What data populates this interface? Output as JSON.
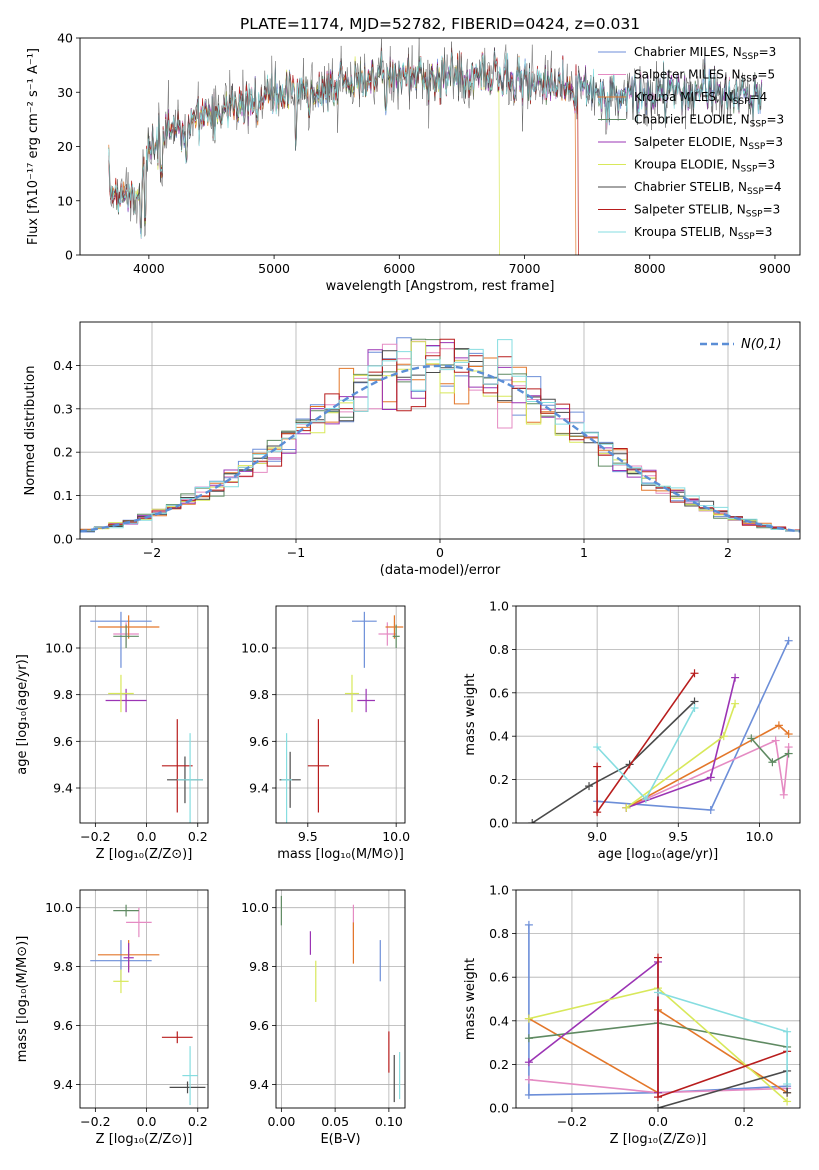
{
  "chart_data": [
    {
      "id": "spectrum",
      "type": "line",
      "title": "PLATE=1174, MJD=52782, FIBERID=0424, z=0.031",
      "xlabel": "wavelength [Angstrom, rest frame]",
      "ylabel": "Flux [fλ10⁻¹⁷ erg cm⁻² s⁻¹ A⁻¹]",
      "xlim": [
        3450,
        9200
      ],
      "ylim": [
        0,
        40
      ],
      "xticks": [
        4000,
        5000,
        6000,
        7000,
        8000,
        9000
      ],
      "yticks": [
        0,
        10,
        20,
        30,
        40
      ],
      "legend_position": "upper-right",
      "series": [
        {
          "name": "Chabrier MILES, N",
          "sub": "SSP",
          "suffix": "=3",
          "color": "#6c8ed8"
        },
        {
          "name": "Salpeter MILES, N",
          "sub": "SSP",
          "suffix": "=5",
          "color": "#e58bc3"
        },
        {
          "name": "Kroupa MILES, N",
          "sub": "SSP",
          "suffix": "=4",
          "color": "#e3772a"
        },
        {
          "name": "Chabrier ELODIE, N",
          "sub": "SSP",
          "suffix": "=3",
          "color": "#5f8a62"
        },
        {
          "name": "Salpeter ELODIE, N",
          "sub": "SSP",
          "suffix": "=3",
          "color": "#9b34b4"
        },
        {
          "name": "Kroupa ELODIE, N",
          "sub": "SSP",
          "suffix": "=3",
          "color": "#d8e85a"
        },
        {
          "name": "Chabrier STELIB, N",
          "sub": "SSP",
          "suffix": "=4",
          "color": "#4a4a4a"
        },
        {
          "name": "Salpeter STELIB, N",
          "sub": "SSP",
          "suffix": "=3",
          "color": "#b81d1d"
        },
        {
          "name": "Kroupa STELIB, N",
          "sub": "SSP",
          "suffix": "=3",
          "color": "#86dde0"
        }
      ],
      "continuum": [
        [
          3680,
          12
        ],
        [
          3900,
          11
        ],
        [
          4000,
          19
        ],
        [
          4200,
          23
        ],
        [
          4500,
          26
        ],
        [
          4800,
          28.5
        ],
        [
          5200,
          30
        ],
        [
          5600,
          32
        ],
        [
          6000,
          33
        ],
        [
          6500,
          33
        ],
        [
          7000,
          32
        ],
        [
          7300,
          31
        ],
        [
          7600,
          30
        ],
        [
          7800,
          29.5
        ],
        [
          8200,
          30
        ],
        [
          8600,
          29.5
        ],
        [
          8900,
          29
        ]
      ],
      "dips": [
        [
          3935,
          3
        ],
        [
          3970,
          6
        ],
        [
          4100,
          14
        ],
        [
          4300,
          16
        ],
        [
          4861,
          24
        ],
        [
          5175,
          20
        ],
        [
          5270,
          26
        ],
        [
          5890,
          26
        ],
        [
          6563,
          30
        ]
      ],
      "model_ranges": [
        [
          3680,
          8900
        ],
        [
          3680,
          8900
        ],
        [
          3680,
          7410
        ],
        [
          3680,
          8900
        ],
        [
          3680,
          8900
        ],
        [
          3680,
          6800
        ],
        [
          3680,
          8900
        ],
        [
          3680,
          7430
        ],
        [
          3680,
          8900
        ]
      ]
    },
    {
      "id": "residuals",
      "type": "step",
      "xlabel": "(data-model)/error",
      "ylabel": "Normed distribution",
      "xlim": [
        -2.5,
        2.5
      ],
      "ylim": [
        0,
        0.5
      ],
      "xticks": [
        -2,
        -1,
        0,
        1,
        2
      ],
      "yticks": [
        0.0,
        0.1,
        0.2,
        0.3,
        0.4
      ],
      "legend": "N(0,1)",
      "bin_width": 0.1
    },
    {
      "id": "Z-age",
      "type": "errorbar",
      "xlabel": "Z [log₁₀(Z/Z⊙)]",
      "ylabel": "age  [log₁₀(age/yr)]",
      "xlim": [
        -0.26,
        0.24
      ],
      "ylim": [
        9.25,
        10.18
      ],
      "xticks": [
        -0.2,
        0.0,
        0.2
      ],
      "yticks": [
        9.4,
        9.6,
        9.8,
        10.0
      ],
      "points": [
        {
          "x": -0.1,
          "y": 10.115,
          "xerr": 0.12,
          "yerr": [
            0.2,
            0.04
          ],
          "color": "#6c8ed8"
        },
        {
          "x": -0.08,
          "y": 10.06,
          "xerr": 0.05,
          "yerr": 0.05,
          "color": "#e58bc3"
        },
        {
          "x": -0.07,
          "y": 10.09,
          "xerr": 0.12,
          "yerr": 0.05,
          "color": "#e3772a"
        },
        {
          "x": -0.08,
          "y": 10.05,
          "xerr": 0.05,
          "yerr": 0.05,
          "color": "#5f8a62"
        },
        {
          "x": -0.08,
          "y": 9.775,
          "xerr": 0.08,
          "yerr": 0.05,
          "color": "#9b34b4"
        },
        {
          "x": -0.1,
          "y": 9.805,
          "xerr": 0.05,
          "yerr": 0.08,
          "color": "#d8e85a"
        },
        {
          "x": 0.15,
          "y": 9.435,
          "xerr": 0.07,
          "yerr": 0.1,
          "color": "#4a4a4a"
        },
        {
          "x": 0.12,
          "y": 9.495,
          "xerr": 0.06,
          "yerr": 0.2,
          "color": "#b81d1d"
        },
        {
          "x": 0.17,
          "y": 9.435,
          "xerr": 0.05,
          "yerr": 0.2,
          "color": "#86dde0"
        }
      ]
    },
    {
      "id": "mass-age",
      "type": "errorbar",
      "xlabel": "mass [log₁₀(M/M⊙)]",
      "xlim": [
        9.32,
        10.05
      ],
      "ylim": [
        9.25,
        10.18
      ],
      "xticks": [
        9.5,
        10.0
      ],
      "yticks": [
        9.4,
        9.6,
        9.8,
        10.0
      ],
      "points": [
        {
          "x": 9.82,
          "y": 10.115,
          "xerr": 0.07,
          "yerr": [
            0.2,
            0.04
          ],
          "color": "#6c8ed8"
        },
        {
          "x": 9.95,
          "y": 10.06,
          "xerr": 0.05,
          "yerr": 0.05,
          "color": "#e58bc3"
        },
        {
          "x": 9.99,
          "y": 10.09,
          "xerr": 0.05,
          "yerr": 0.05,
          "color": "#e3772a"
        },
        {
          "x": 10.0,
          "y": 10.05,
          "xerr": 0.02,
          "yerr": 0.05,
          "color": "#5f8a62"
        },
        {
          "x": 9.83,
          "y": 9.775,
          "xerr": 0.05,
          "yerr": 0.05,
          "color": "#9b34b4"
        },
        {
          "x": 9.75,
          "y": 9.805,
          "xerr": 0.04,
          "yerr": 0.08,
          "color": "#d8e85a"
        },
        {
          "x": 9.4,
          "y": 9.435,
          "xerr": 0.06,
          "yerr": 0.12,
          "color": "#4a4a4a"
        },
        {
          "x": 9.56,
          "y": 9.495,
          "xerr": 0.06,
          "yerr": 0.2,
          "color": "#b81d1d"
        },
        {
          "x": 9.38,
          "y": 9.435,
          "xerr": 0.03,
          "yerr": 0.2,
          "color": "#86dde0"
        }
      ]
    },
    {
      "id": "age-weight",
      "type": "line",
      "xlabel": "age  [log₁₀(age/yr)]",
      "ylabel": "mass weight",
      "xlim": [
        8.5,
        10.25
      ],
      "ylim": [
        0,
        1.0
      ],
      "xticks": [
        9.0,
        9.5,
        10.0
      ],
      "yticks": [
        0.0,
        0.2,
        0.4,
        0.6,
        0.8,
        1.0
      ],
      "series": [
        {
          "color": "#6c8ed8",
          "x": [
            9.0,
            9.7,
            10.18
          ],
          "y": [
            0.1,
            0.06,
            0.84
          ]
        },
        {
          "color": "#e58bc3",
          "x": [
            9.18,
            10.1,
            10.15,
            10.18
          ],
          "y": [
            0.07,
            0.38,
            0.13,
            0.35
          ]
        },
        {
          "color": "#e3772a",
          "x": [
            9.18,
            10.12,
            10.18
          ],
          "y": [
            0.07,
            0.45,
            0.41
          ]
        },
        {
          "color": "#5f8a62",
          "x": [
            9.95,
            10.08,
            10.18
          ],
          "y": [
            0.39,
            0.28,
            0.32
          ]
        },
        {
          "color": "#9b34b4",
          "x": [
            9.18,
            9.7,
            9.85
          ],
          "y": [
            0.07,
            0.21,
            0.67
          ]
        },
        {
          "color": "#d8e85a",
          "x": [
            9.18,
            9.78,
            9.85
          ],
          "y": [
            0.07,
            0.4,
            0.55
          ]
        },
        {
          "color": "#4a4a4a",
          "x": [
            8.6,
            8.95,
            9.2,
            9.6
          ],
          "y": [
            0.0,
            0.17,
            0.27,
            0.56
          ]
        },
        {
          "color": "#b81d1d",
          "x": [
            9.0,
            9.0,
            9.6
          ],
          "y": [
            0.26,
            0.05,
            0.69
          ]
        },
        {
          "color": "#86dde0",
          "x": [
            9.0,
            9.3,
            9.6
          ],
          "y": [
            0.35,
            0.11,
            0.53
          ]
        }
      ]
    },
    {
      "id": "Z-mass",
      "type": "errorbar",
      "xlabel": "Z [log₁₀(Z/Z⊙)]",
      "ylabel": "mass [log₁₀(M/M⊙)]",
      "xlim": [
        -0.26,
        0.24
      ],
      "ylim": [
        9.32,
        10.06
      ],
      "xticks": [
        -0.2,
        0.0,
        0.2
      ],
      "yticks": [
        9.4,
        9.6,
        9.8,
        10.0
      ],
      "points": [
        {
          "x": -0.1,
          "y": 9.82,
          "xerr": 0.12,
          "yerr": 0.07,
          "color": "#6c8ed8"
        },
        {
          "x": -0.03,
          "y": 9.95,
          "xerr": 0.05,
          "yerr": 0.05,
          "color": "#e58bc3"
        },
        {
          "x": -0.07,
          "y": 9.84,
          "xerr": 0.12,
          "yerr": 0.05,
          "color": "#e3772a"
        },
        {
          "x": -0.08,
          "y": 9.99,
          "xerr": 0.05,
          "yerr": 0.02,
          "color": "#5f8a62"
        },
        {
          "x": -0.07,
          "y": 9.83,
          "xerr": 0.02,
          "yerr": 0.05,
          "color": "#9b34b4"
        },
        {
          "x": -0.1,
          "y": 9.75,
          "xerr": 0.03,
          "yerr": 0.04,
          "color": "#d8e85a"
        },
        {
          "x": 0.16,
          "y": 9.39,
          "xerr": 0.07,
          "yerr": 0.02,
          "color": "#4a4a4a"
        },
        {
          "x": 0.12,
          "y": 9.56,
          "xerr": 0.06,
          "yerr": 0.02,
          "color": "#b81d1d"
        },
        {
          "x": 0.17,
          "y": 9.43,
          "xerr": 0.03,
          "yerr": 0.1,
          "color": "#86dde0"
        }
      ]
    },
    {
      "id": "ebv-mass",
      "type": "errorbar",
      "xlabel": "E(B-V)",
      "xlim": [
        -0.005,
        0.115
      ],
      "ylim": [
        9.32,
        10.06
      ],
      "xticks": [
        0.0,
        0.05,
        0.1
      ],
      "yticks": [
        9.4,
        9.6,
        9.8,
        10.0
      ],
      "points": [
        {
          "x": 0.092,
          "y": 9.82,
          "xerr": 0,
          "yerr": 0.07,
          "color": "#6c8ed8"
        },
        {
          "x": 0.067,
          "y": 9.95,
          "xerr": 0,
          "yerr": 0.06,
          "color": "#e58bc3"
        },
        {
          "x": 0.067,
          "y": 9.88,
          "xerr": 0,
          "yerr": 0.07,
          "color": "#e3772a"
        },
        {
          "x": 0.0,
          "y": 9.99,
          "xerr": 0,
          "yerr": 0.05,
          "color": "#5f8a62"
        },
        {
          "x": 0.027,
          "y": 9.88,
          "xerr": 0,
          "yerr": 0.04,
          "color": "#9b34b4"
        },
        {
          "x": 0.032,
          "y": 9.75,
          "xerr": 0,
          "yerr": 0.07,
          "color": "#d8e85a"
        },
        {
          "x": 0.105,
          "y": 9.42,
          "xerr": 0,
          "yerr": 0.08,
          "color": "#4a4a4a"
        },
        {
          "x": 0.1,
          "y": 9.51,
          "xerr": 0,
          "yerr": 0.07,
          "color": "#b81d1d"
        },
        {
          "x": 0.11,
          "y": 9.43,
          "xerr": 0,
          "yerr": 0.08,
          "color": "#86dde0"
        }
      ]
    },
    {
      "id": "Z-weight",
      "type": "line",
      "xlabel": "Z [log₁₀(Z/Z⊙)]",
      "ylabel": "mass weight",
      "xlim": [
        -0.33,
        0.33
      ],
      "ylim": [
        0,
        1.0
      ],
      "xticks": [
        -0.2,
        0.0,
        0.2
      ],
      "yticks": [
        0.0,
        0.2,
        0.4,
        0.6,
        0.8,
        1.0
      ],
      "series": [
        {
          "color": "#6c8ed8",
          "x": [
            -0.3,
            -0.3,
            0.0,
            0.3
          ],
          "y": [
            0.84,
            0.06,
            0.07,
            0.1
          ]
        },
        {
          "color": "#e58bc3",
          "x": [
            -0.3,
            0.0,
            0.3
          ],
          "y": [
            0.13,
            0.07,
            0.09
          ]
        },
        {
          "color": "#e3772a",
          "x": [
            -0.3,
            0.0,
            0.0,
            0.3
          ],
          "y": [
            0.41,
            0.07,
            0.45,
            0.07
          ]
        },
        {
          "color": "#5f8a62",
          "x": [
            -0.3,
            0.0,
            0.3
          ],
          "y": [
            0.32,
            0.39,
            0.28
          ]
        },
        {
          "color": "#9b34b4",
          "x": [
            -0.3,
            0.0,
            0.0
          ],
          "y": [
            0.21,
            0.67,
            0.07
          ]
        },
        {
          "color": "#d8e85a",
          "x": [
            -0.3,
            0.0,
            0.3
          ],
          "y": [
            0.41,
            0.55,
            0.03
          ]
        },
        {
          "color": "#4a4a4a",
          "x": [
            0.0,
            0.3,
            0.3
          ],
          "y": [
            0.0,
            0.17,
            0.07
          ]
        },
        {
          "color": "#b81d1d",
          "x": [
            0.0,
            0.0,
            0.3
          ],
          "y": [
            0.69,
            0.05,
            0.26
          ]
        },
        {
          "color": "#86dde0",
          "x": [
            0.0,
            0.3,
            0.3
          ],
          "y": [
            0.53,
            0.35,
            0.11
          ]
        }
      ]
    }
  ]
}
